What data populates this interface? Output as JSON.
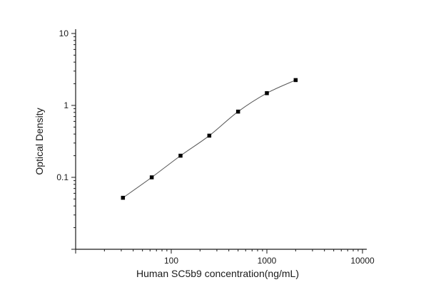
{
  "chart_data": {
    "type": "scatter",
    "title": "",
    "xlabel": "Human SC5b9 concentration(ng/mL)",
    "ylabel": "Optical Density",
    "xscale": "log",
    "yscale": "log",
    "xlim": [
      10,
      10000
    ],
    "ylim": [
      0.01,
      10
    ],
    "x_ticks": [
      {
        "value": 100,
        "label": "100"
      },
      {
        "value": 1000,
        "label": "1000"
      },
      {
        "value": 10000,
        "label": "10000"
      }
    ],
    "y_ticks": [
      {
        "value": 0.1,
        "label": "0.1"
      },
      {
        "value": 1,
        "label": "1"
      },
      {
        "value": 10,
        "label": "10"
      }
    ],
    "grid": false,
    "legend": "none",
    "colors": {
      "axis": "#1a1a1a",
      "marker": "#000000",
      "curve": "#555555"
    },
    "series": [
      {
        "marker": "square",
        "points": [
          {
            "x": 31.25,
            "y": 0.052
          },
          {
            "x": 62.5,
            "y": 0.1
          },
          {
            "x": 125,
            "y": 0.2
          },
          {
            "x": 250,
            "y": 0.38
          },
          {
            "x": 500,
            "y": 0.82
          },
          {
            "x": 1000,
            "y": 1.48
          },
          {
            "x": 2000,
            "y": 2.25
          }
        ]
      }
    ],
    "fit_curve": {
      "type": "4PL",
      "x_range": [
        31.25,
        2000
      ]
    }
  }
}
